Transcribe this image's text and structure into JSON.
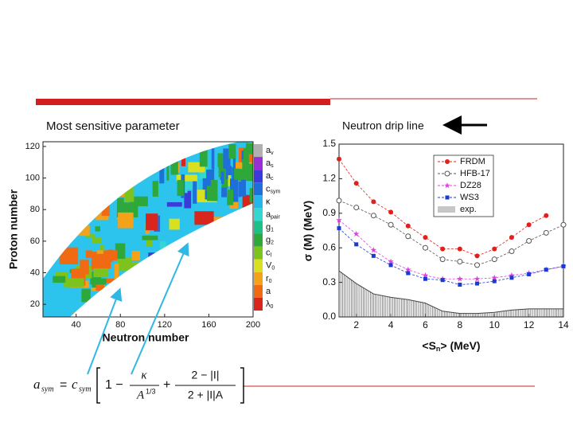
{
  "left_caption": "Most sensitive parameter",
  "right_caption": "Neutron drip line",
  "formula": {
    "lhs": "a",
    "lhs_sub": "sym",
    "eq": "=",
    "c": "c",
    "c_sub": "sym",
    "one": "1 −",
    "kappa": "κ",
    "denom": "A",
    "denom_exp": "1/3",
    "plus": "+",
    "num2": "2 − |I|",
    "den2": "2 + |I|A"
  },
  "chart_data": [
    {
      "type": "heatmap",
      "x_label": "Neutron number",
      "y_label": "Proton number",
      "xlim": [
        10,
        200
      ],
      "xticks": [
        40,
        80,
        120,
        160,
        200
      ],
      "ylim": [
        12,
        123
      ],
      "yticks": [
        20,
        40,
        60,
        80,
        100,
        120
      ],
      "colorbar": [
        {
          "base": "a",
          "sub": "v",
          "color": "#b0b0b0"
        },
        {
          "base": "a",
          "sub": "s",
          "color": "#9a2fd6"
        },
        {
          "base": "a",
          "sub": "c",
          "color": "#3b3bd9"
        },
        {
          "base": "c",
          "sub": "sym",
          "color": "#1e6fd8"
        },
        {
          "base": "κ",
          "sub": "",
          "color": "#27b6ec"
        },
        {
          "base": "a",
          "sub": "pair",
          "color": "#34d6d0"
        },
        {
          "base": "g",
          "sub": "1",
          "color": "#1fbf88"
        },
        {
          "base": "g",
          "sub": "2",
          "color": "#2ea83a"
        },
        {
          "base": "c",
          "sub": "l",
          "color": "#7cc41d"
        },
        {
          "base": "V",
          "sub": "0",
          "color": "#d8e020"
        },
        {
          "base": "r",
          "sub": "0",
          "color": "#f3a21a"
        },
        {
          "base": "a",
          "sub": "",
          "color": "#ef6a12"
        },
        {
          "base": "λ",
          "sub": "0",
          "color": "#d8261c"
        }
      ]
    },
    {
      "type": "line",
      "x_label": {
        "text": "<S",
        "sub": "n",
        "tail": "> (MeV)"
      },
      "y_label": "σ (M) (MeV)",
      "xlim": [
        1,
        14
      ],
      "xticks": [
        2,
        4,
        6,
        8,
        10,
        12,
        14
      ],
      "ylim": [
        0,
        1.5
      ],
      "yticks": [
        {
          "value": 0,
          "label": "0.0"
        },
        0.3,
        0.6,
        0.9,
        1.2,
        1.5
      ],
      "series": [
        {
          "name": "FRDM",
          "color": "#e0201c",
          "marker": "circle-filled",
          "x": [
            1,
            2,
            3,
            4,
            5,
            6,
            7,
            8,
            9,
            10,
            11,
            12,
            13
          ],
          "values": [
            1.37,
            1.16,
            1.0,
            0.91,
            0.79,
            0.69,
            0.59,
            0.59,
            0.53,
            0.59,
            0.69,
            0.8,
            0.88
          ]
        },
        {
          "name": "HFB-17",
          "color": "#555555",
          "marker": "circle-open",
          "x": [
            1,
            2,
            3,
            4,
            5,
            6,
            7,
            8,
            9,
            10,
            11,
            12,
            13,
            14
          ],
          "values": [
            1.01,
            0.95,
            0.88,
            0.8,
            0.7,
            0.6,
            0.5,
            0.48,
            0.45,
            0.5,
            0.57,
            0.66,
            0.73,
            0.8
          ]
        },
        {
          "name": "DZ28",
          "color": "#e040e0",
          "marker": "star",
          "x": [
            1,
            2,
            3,
            4,
            5,
            6,
            7,
            8,
            9,
            10,
            11,
            12,
            13,
            14
          ],
          "values": [
            0.84,
            0.72,
            0.58,
            0.48,
            0.41,
            0.36,
            0.33,
            0.33,
            0.33,
            0.34,
            0.36,
            0.38,
            0.41,
            0.44
          ]
        },
        {
          "name": "WS3",
          "color": "#1a3ad0",
          "marker": "square",
          "x": [
            1,
            2,
            3,
            4,
            5,
            6,
            7,
            8,
            9,
            10,
            11,
            12,
            13,
            14
          ],
          "values": [
            0.77,
            0.63,
            0.53,
            0.45,
            0.38,
            0.33,
            0.32,
            0.28,
            0.29,
            0.31,
            0.34,
            0.37,
            0.41,
            0.44
          ]
        },
        {
          "name": "exp.",
          "color": "#444444",
          "marker": "hatch",
          "x": [
            1,
            2,
            3,
            4,
            5,
            6,
            7,
            8,
            9,
            10,
            11,
            12,
            13,
            14
          ],
          "values": [
            0.4,
            0.29,
            0.2,
            0.17,
            0.15,
            0.12,
            0.05,
            0.03,
            0.03,
            0.04,
            0.06,
            0.07,
            0.07,
            0.07
          ]
        }
      ]
    }
  ]
}
